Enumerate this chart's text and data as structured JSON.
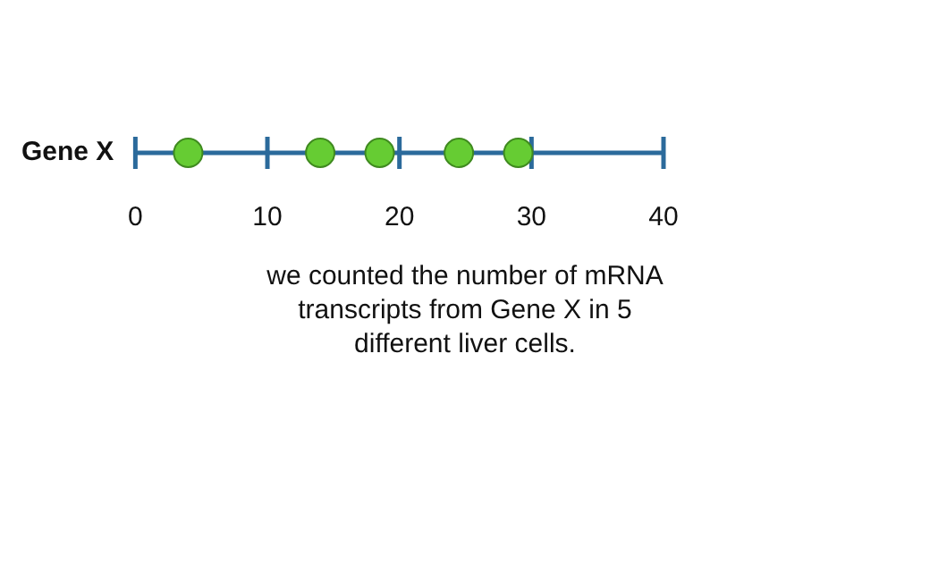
{
  "chart_data": {
    "type": "scatter",
    "orientation": "horizontal",
    "categories": [
      "Gene X"
    ],
    "series": [
      {
        "x": [
          "Gene X",
          "Gene X",
          "Gene X",
          "Gene X",
          "Gene X"
        ],
        "values": [
          4,
          14,
          18.5,
          24.5,
          29
        ],
        "color": "#66cc33"
      }
    ],
    "marker": "circle",
    "xlim": [
      0,
      40
    ],
    "xticks": [
      0,
      10,
      20,
      30,
      40
    ],
    "grid": false,
    "legend": false,
    "annotations": [
      "we counted the number of mRNA transcripts from Gene X in 5 different liver cells."
    ]
  }
}
